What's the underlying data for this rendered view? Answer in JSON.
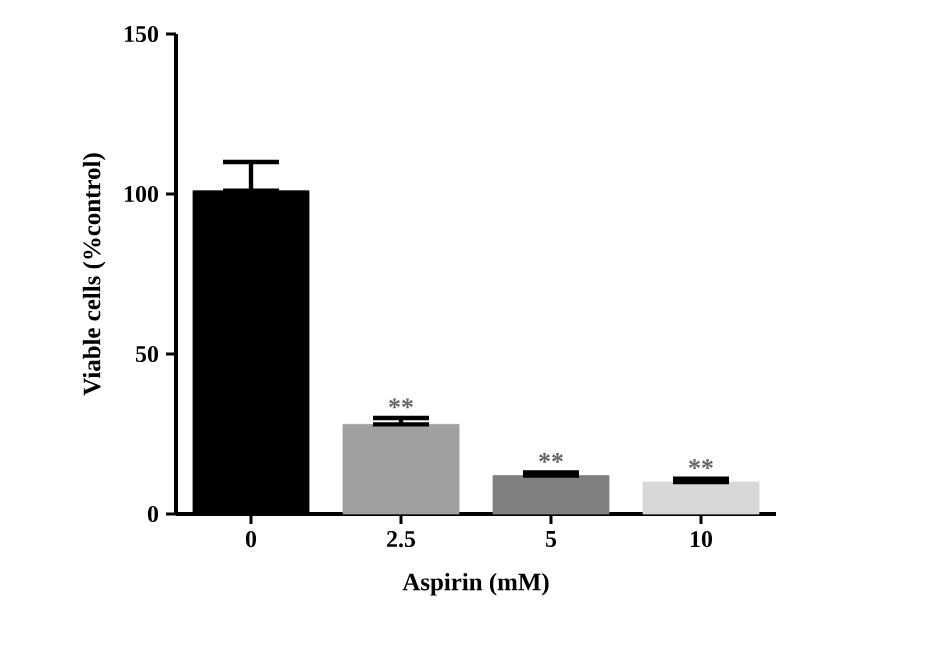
{
  "chart_data": {
    "type": "bar",
    "xlabel": "Aspirin (mM)",
    "ylabel": "Viable cells  (%control)",
    "categories": [
      "0",
      "2.5",
      "5",
      "10"
    ],
    "values": [
      101,
      28,
      12,
      10
    ],
    "colors": [
      "#000000",
      "#a0a0a2",
      "#808080",
      "#d8d8d8"
    ],
    "errors": [
      [
        101,
        110
      ],
      [
        28,
        30
      ],
      [
        12,
        13
      ],
      [
        10,
        11
      ]
    ],
    "ylim": [
      0,
      150
    ],
    "yticks": [
      0,
      50,
      100,
      150
    ],
    "annotations": [
      {
        "text": "**",
        "x": "2.5",
        "y": 30
      },
      {
        "text": "**",
        "x": "5",
        "y": 13
      },
      {
        "text": "**",
        "x": "10",
        "y": 11
      }
    ]
  }
}
